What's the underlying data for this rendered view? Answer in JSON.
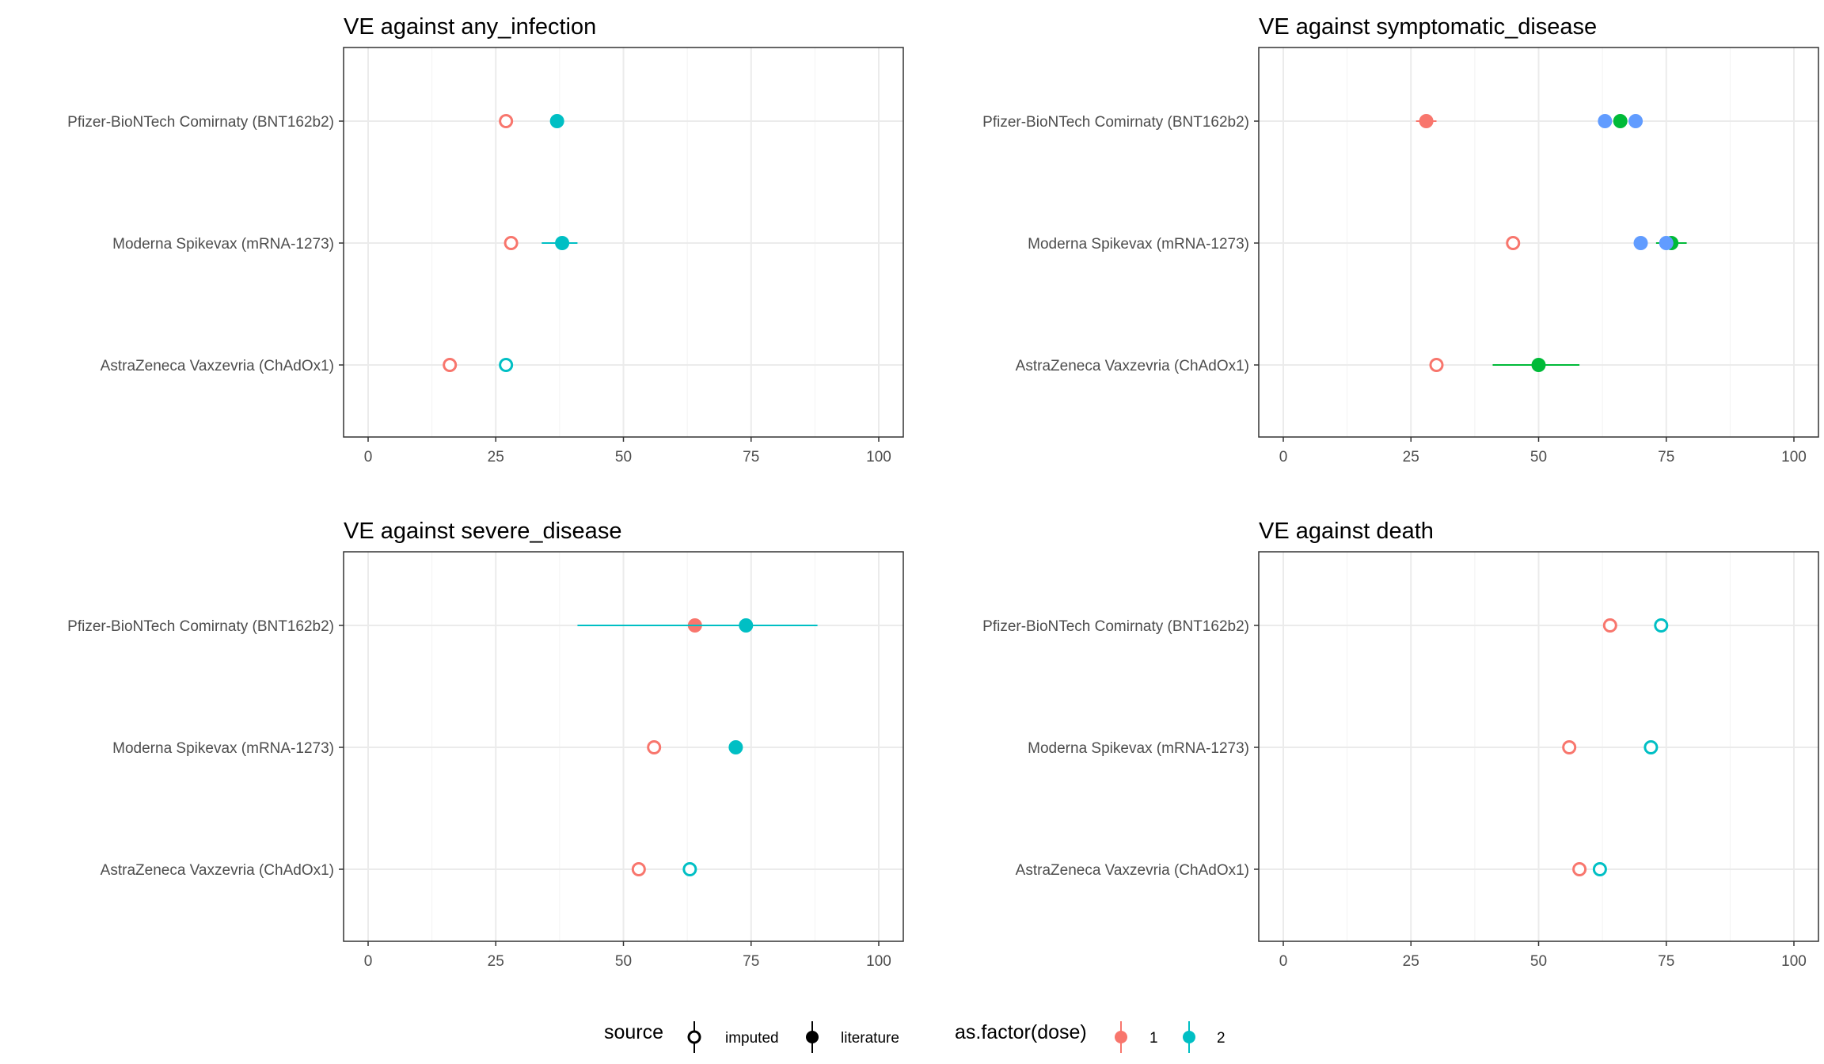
{
  "chart_data": [
    {
      "type": "scatter",
      "title": "VE against any_infection",
      "xlim": [
        0,
        100
      ],
      "x_ticks": [
        "0",
        "25",
        "50",
        "75",
        "100"
      ],
      "categories": [
        "Pfizer-BioNTech Comirnaty (BNT162b2)",
        "Moderna Spikevax (mRNA-1273)",
        "AstraZeneca Vaxzevria (ChAdOx1)"
      ],
      "points": [
        {
          "category": 0,
          "x": 27,
          "dose": "1",
          "source": "imputed"
        },
        {
          "category": 0,
          "x": 37,
          "lo": 36,
          "hi": 38,
          "dose": "2",
          "source": "literature"
        },
        {
          "category": 1,
          "x": 28,
          "dose": "1",
          "source": "imputed"
        },
        {
          "category": 1,
          "x": 38,
          "lo": 34,
          "hi": 41,
          "dose": "2",
          "source": "literature"
        },
        {
          "category": 2,
          "x": 16,
          "dose": "1",
          "source": "imputed"
        },
        {
          "category": 2,
          "x": 27,
          "dose": "2",
          "source": "imputed"
        }
      ]
    },
    {
      "type": "scatter",
      "title": "VE against symptomatic_disease",
      "xlim": [
        0,
        100
      ],
      "x_ticks": [
        "0",
        "25",
        "50",
        "75",
        "100"
      ],
      "categories": [
        "Pfizer-BioNTech Comirnaty (BNT162b2)",
        "Moderna Spikevax (mRNA-1273)",
        "AstraZeneca Vaxzevria (ChAdOx1)"
      ],
      "points": [
        {
          "category": 0,
          "x": 28,
          "lo": 26,
          "hi": 30,
          "dose": "1",
          "source": "literature",
          "color": "#F8766D"
        },
        {
          "category": 0,
          "x": 63,
          "dose": "",
          "source": "literature",
          "color": "#619CFF"
        },
        {
          "category": 0,
          "x": 66,
          "dose": "",
          "source": "literature",
          "color": "#00BA38"
        },
        {
          "category": 0,
          "x": 69,
          "dose": "",
          "source": "literature",
          "color": "#619CFF"
        },
        {
          "category": 1,
          "x": 45,
          "dose": "1",
          "source": "imputed",
          "color": "#F8766D"
        },
        {
          "category": 1,
          "x": 70,
          "dose": "",
          "source": "literature",
          "color": "#619CFF"
        },
        {
          "category": 1,
          "x": 76,
          "lo": 73,
          "hi": 79,
          "dose": "",
          "source": "literature",
          "color": "#00BA38"
        },
        {
          "category": 1,
          "x": 75,
          "dose": "",
          "source": "literature",
          "color": "#619CFF"
        },
        {
          "category": 2,
          "x": 30,
          "dose": "1",
          "source": "imputed",
          "color": "#F8766D"
        },
        {
          "category": 2,
          "x": 50,
          "lo": 41,
          "hi": 58,
          "dose": "",
          "source": "literature",
          "color": "#00BA38"
        }
      ]
    },
    {
      "type": "scatter",
      "title": "VE against severe_disease",
      "xlim": [
        0,
        100
      ],
      "x_ticks": [
        "0",
        "25",
        "50",
        "75",
        "100"
      ],
      "categories": [
        "Pfizer-BioNTech Comirnaty (BNT162b2)",
        "Moderna Spikevax (mRNA-1273)",
        "AstraZeneca Vaxzevria (ChAdOx1)"
      ],
      "points": [
        {
          "category": 0,
          "x": 64,
          "dose": "1",
          "source": "literature"
        },
        {
          "category": 0,
          "x": 74,
          "lo": 41,
          "hi": 88,
          "dose": "2",
          "source": "literature"
        },
        {
          "category": 1,
          "x": 56,
          "dose": "1",
          "source": "imputed"
        },
        {
          "category": 1,
          "x": 72,
          "dose": "2",
          "source": "literature"
        },
        {
          "category": 2,
          "x": 53,
          "dose": "1",
          "source": "imputed"
        },
        {
          "category": 2,
          "x": 63,
          "dose": "2",
          "source": "imputed"
        }
      ]
    },
    {
      "type": "scatter",
      "title": "VE against death",
      "xlim": [
        0,
        100
      ],
      "x_ticks": [
        "0",
        "25",
        "50",
        "75",
        "100"
      ],
      "categories": [
        "Pfizer-BioNTech Comirnaty (BNT162b2)",
        "Moderna Spikevax (mRNA-1273)",
        "AstraZeneca Vaxzevria (ChAdOx1)"
      ],
      "points": [
        {
          "category": 0,
          "x": 64,
          "dose": "1",
          "source": "imputed"
        },
        {
          "category": 0,
          "x": 74,
          "dose": "2",
          "source": "imputed"
        },
        {
          "category": 1,
          "x": 56,
          "dose": "1",
          "source": "imputed"
        },
        {
          "category": 1,
          "x": 72,
          "dose": "2",
          "source": "imputed"
        },
        {
          "category": 2,
          "x": 58,
          "dose": "1",
          "source": "imputed"
        },
        {
          "category": 2,
          "x": 62,
          "dose": "2",
          "source": "imputed"
        }
      ]
    }
  ],
  "legend": {
    "source_title": "source",
    "source_items": [
      "imputed",
      "literature"
    ],
    "dose_title": "as.factor(dose)",
    "dose_items": [
      {
        "label": "1",
        "color": "#F8766D"
      },
      {
        "label": "2",
        "color": "#00BFC4"
      }
    ]
  }
}
